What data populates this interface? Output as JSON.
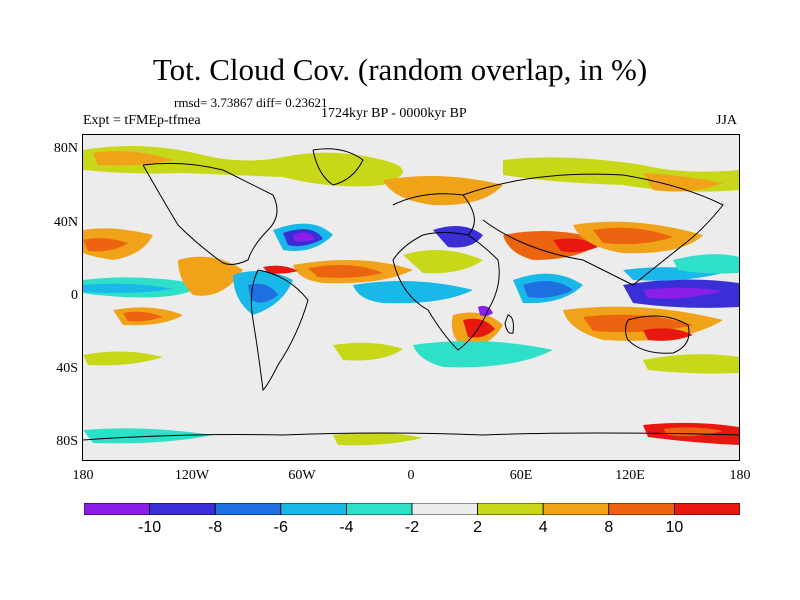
{
  "title": "Tot. Cloud Cov. (random overlap, in %)",
  "stats": "rmsd= 3.73867 diff= 0.23621",
  "period": "1724kyr BP - 0000kyr BP",
  "experiment": "Expt = tFMEp-tfmea",
  "season": "JJA",
  "lat_labels": [
    "80N",
    "40N",
    "0",
    "40S",
    "80S"
  ],
  "lon_labels": [
    "180",
    "120W",
    "60W",
    "0",
    "60E",
    "120E",
    "180"
  ],
  "colorbar": {
    "levels": [
      "-10",
      "-8",
      "-6",
      "-4",
      "-2",
      "2",
      "4",
      "8",
      "10"
    ],
    "colors": [
      "#8b1fe8",
      "#3a2fd6",
      "#1e6fe0",
      "#18b8e8",
      "#2ee0c8",
      "#ececec",
      "#c8d818",
      "#f0a318",
      "#ec6410",
      "#e81810"
    ]
  },
  "map_colors": {
    "land_outline": "#000000",
    "background": "#ececec"
  }
}
